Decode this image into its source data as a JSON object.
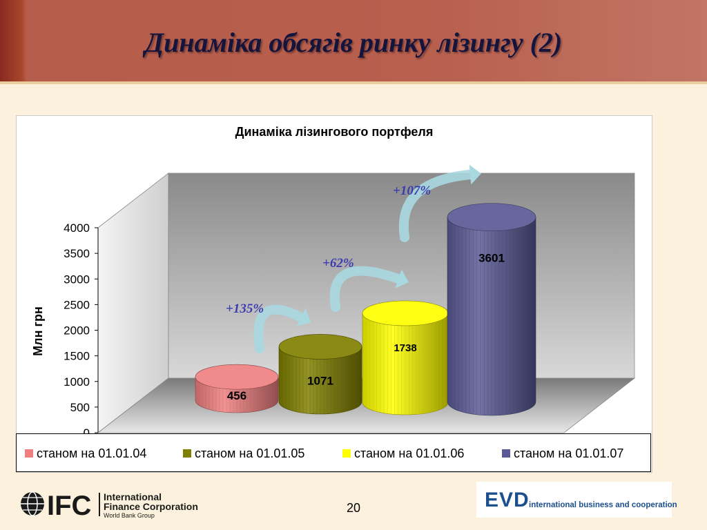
{
  "slide": {
    "title": "Динаміка обсягів ринку лізингу (2)",
    "page_number": "20"
  },
  "chart_data": {
    "type": "bar",
    "style": "3d-cylinder",
    "title": "Динаміка лізингового портфеля",
    "ylabel": "Млн грн",
    "xlabel": "",
    "ylim": [
      0,
      4000
    ],
    "yticks": [
      0,
      500,
      1000,
      1500,
      2000,
      2500,
      3000,
      3500,
      4000
    ],
    "legend_position": "bottom",
    "series": [
      {
        "name": "станом на 01.01.04",
        "value": 456,
        "label": "456",
        "color": "#f08080"
      },
      {
        "name": "станом на 01.01.05",
        "value": 1071,
        "label": "1071",
        "color": "#808000"
      },
      {
        "name": "станом на 01.01.06",
        "value": 1738,
        "label": "1738",
        "color": "#ffff00"
      },
      {
        "name": "станом на 01.01.07",
        "value": 3601,
        "label": "3601",
        "color": "#5a5a96"
      }
    ],
    "growth_annotations": [
      "+135%",
      "+62%",
      "+107%"
    ],
    "annotation_color": "#3b3bb0",
    "arrow_color": "#a8d8e0"
  },
  "logos": {
    "ifc_mark": "IFC",
    "ifc_name_line1": "International",
    "ifc_name_line2": "Finance Corporation",
    "ifc_name_line3": "World Bank Group",
    "evd_mark": "EVD",
    "evd_tagline": "international business and cooperation"
  }
}
